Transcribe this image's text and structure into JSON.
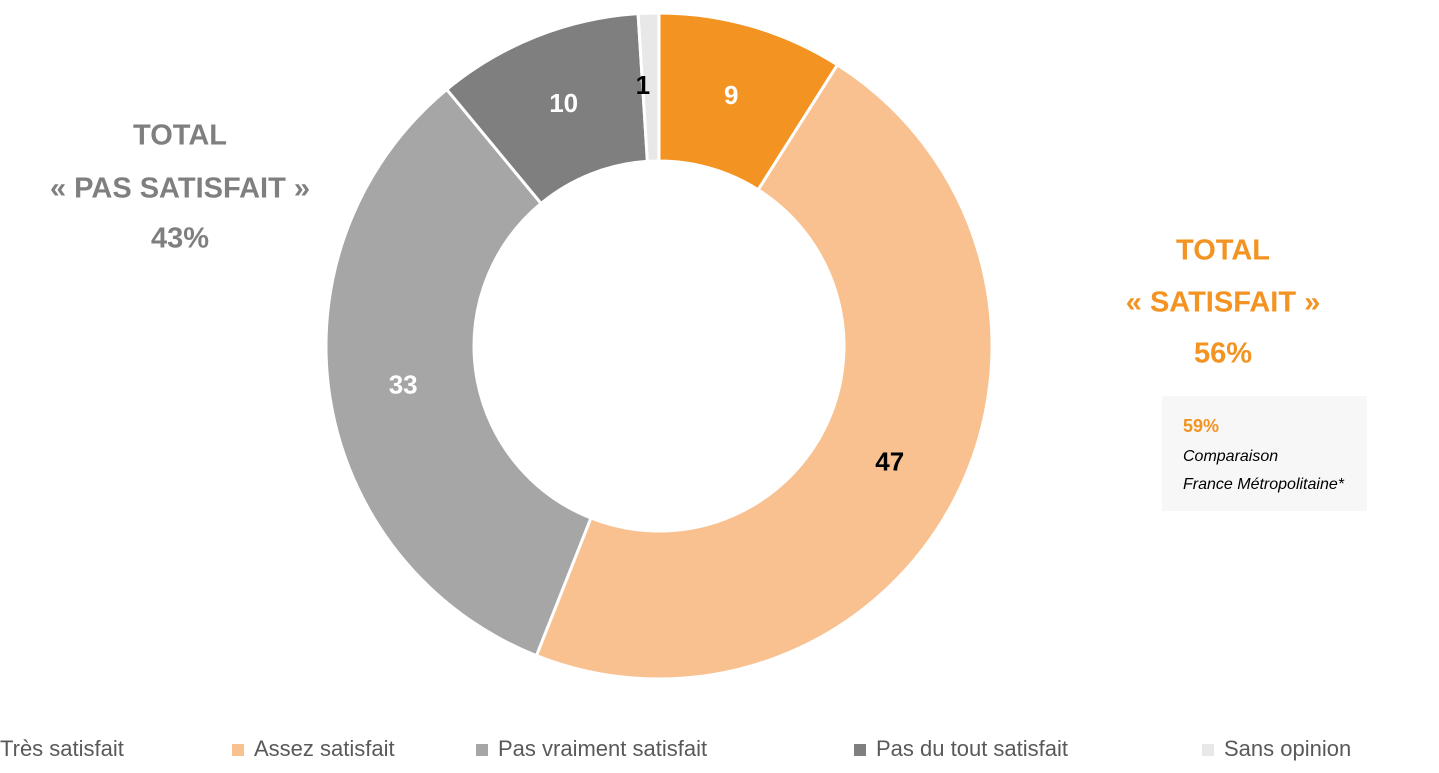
{
  "chart_data": {
    "type": "donut",
    "categories": [
      "Très satisfait",
      "Assez satisfait",
      "Pas vraiment satisfait",
      "Pas du tout satisfait",
      "Sans opinion"
    ],
    "values": [
      9,
      47,
      33,
      10,
      1
    ],
    "colors": [
      "#f39322",
      "#f9c190",
      "#a6a6a6",
      "#7f7f7f",
      "#e8e8e8"
    ],
    "legend": "bottom",
    "annotations": [
      {
        "lines": [
          "TOTAL",
          "« PAS SATISFAIT »",
          "43%"
        ]
      },
      {
        "lines": [
          "TOTAL",
          "« SATISFAIT »",
          "56%"
        ]
      },
      {
        "lines": [
          "59%",
          "Comparaison",
          "France Métropolitaine*"
        ]
      }
    ]
  }
}
